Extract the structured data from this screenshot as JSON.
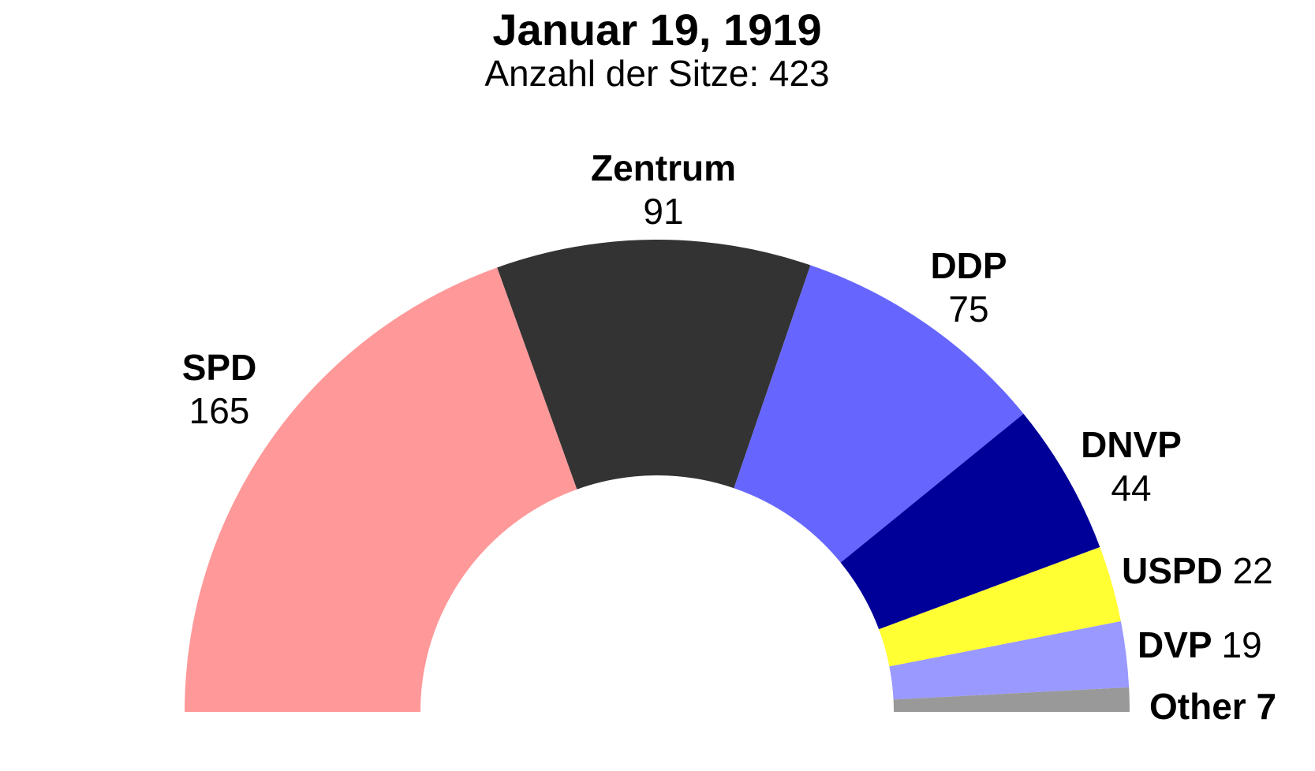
{
  "chart_data": {
    "type": "pie",
    "layout": "semicircle",
    "title": "Januar 19, 1919",
    "subtitle": "Anzahl der Sitze: 423",
    "total": 423,
    "slices": [
      {
        "label": "SPD",
        "value": 165,
        "value_text": "165",
        "color": "#FF9999"
      },
      {
        "label": "Zentrum",
        "value": 91,
        "value_text": "91",
        "color": "#333333"
      },
      {
        "label": "DDP",
        "value": 75,
        "value_text": "75",
        "color": "#6666FF"
      },
      {
        "label": "DNVP",
        "value": 44,
        "value_text": "44",
        "color": "#000099"
      },
      {
        "label": "USPD",
        "value": 22,
        "value_text": "22",
        "color": "#FFFF33"
      },
      {
        "label": "DVP",
        "value": 19,
        "value_text": "19",
        "color": "#9999FF"
      },
      {
        "label": "Other",
        "value": 7,
        "value_text": "7",
        "color": "#999999"
      }
    ]
  }
}
